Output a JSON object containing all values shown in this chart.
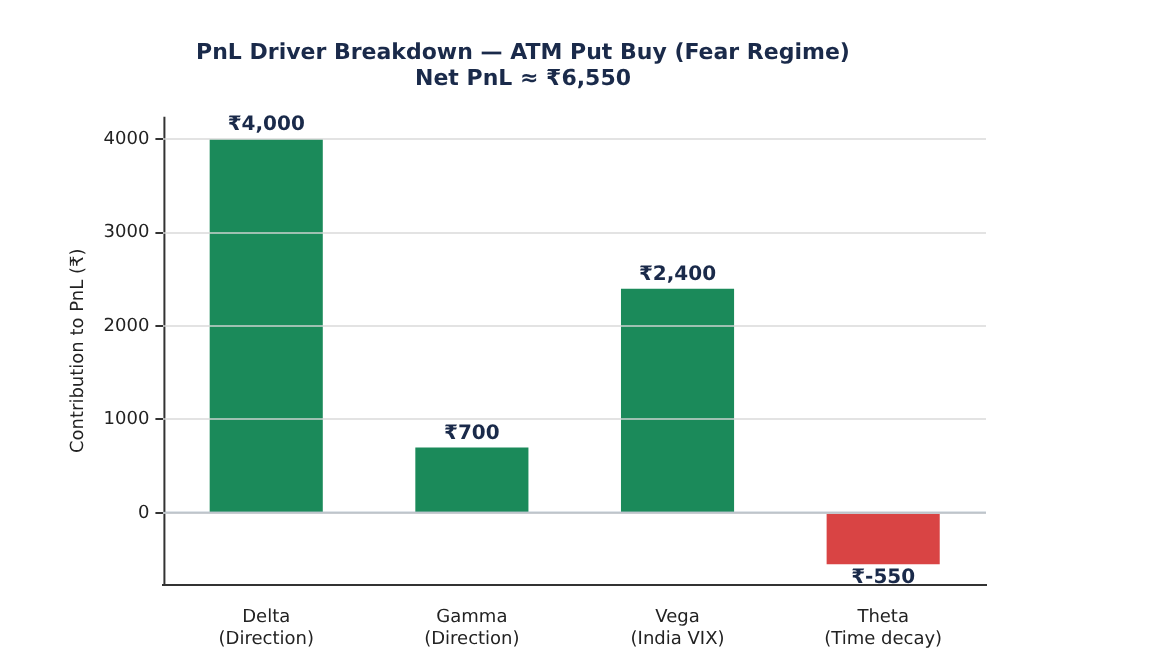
{
  "chart_data": {
    "type": "bar",
    "title": "PnL Driver Breakdown — ATM Put Buy (Fear Regime)",
    "subtitle": "Net PnL ≈ ₹6,550",
    "ylabel": "Contribution to PnL (₹)",
    "categories": [
      "Delta\n(Direction)",
      "Gamma\n(Direction)",
      "Vega\n(India VIX)",
      "Theta\n(Time decay)"
    ],
    "values": [
      4000,
      700,
      2400,
      -550
    ],
    "colors": [
      "#1b8a5a",
      "#1b8a5a",
      "#1b8a5a",
      "#d94444"
    ],
    "value_labels": [
      "₹4,000",
      "₹700",
      "₹2,400",
      "₹-550"
    ],
    "ylim": [
      -770,
      4240
    ],
    "yticks": [
      0,
      1000,
      2000,
      3000,
      4000
    ],
    "grid": "y",
    "ref_lines": [
      {
        "axis": "y",
        "value": 0,
        "color": "#8499ad"
      }
    ]
  }
}
